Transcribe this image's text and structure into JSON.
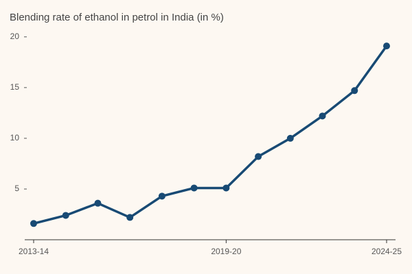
{
  "chart_data": {
    "type": "line",
    "subtitle": "Blending rate of ethanol in petrol in India (in %)",
    "categories": [
      "2013-14",
      null,
      null,
      null,
      null,
      null,
      "2019-20",
      null,
      null,
      null,
      null,
      "2024-25"
    ],
    "series": [
      {
        "color": "#184a74",
        "values": [
          1.6,
          2.4,
          3.6,
          2.2,
          4.3,
          5.1,
          5.1,
          8.2,
          10.0,
          12.2,
          14.7,
          19.1
        ]
      }
    ],
    "ylim": [
      0,
      21
    ],
    "yticks": [
      5,
      10,
      15,
      20
    ],
    "grid": false
  }
}
